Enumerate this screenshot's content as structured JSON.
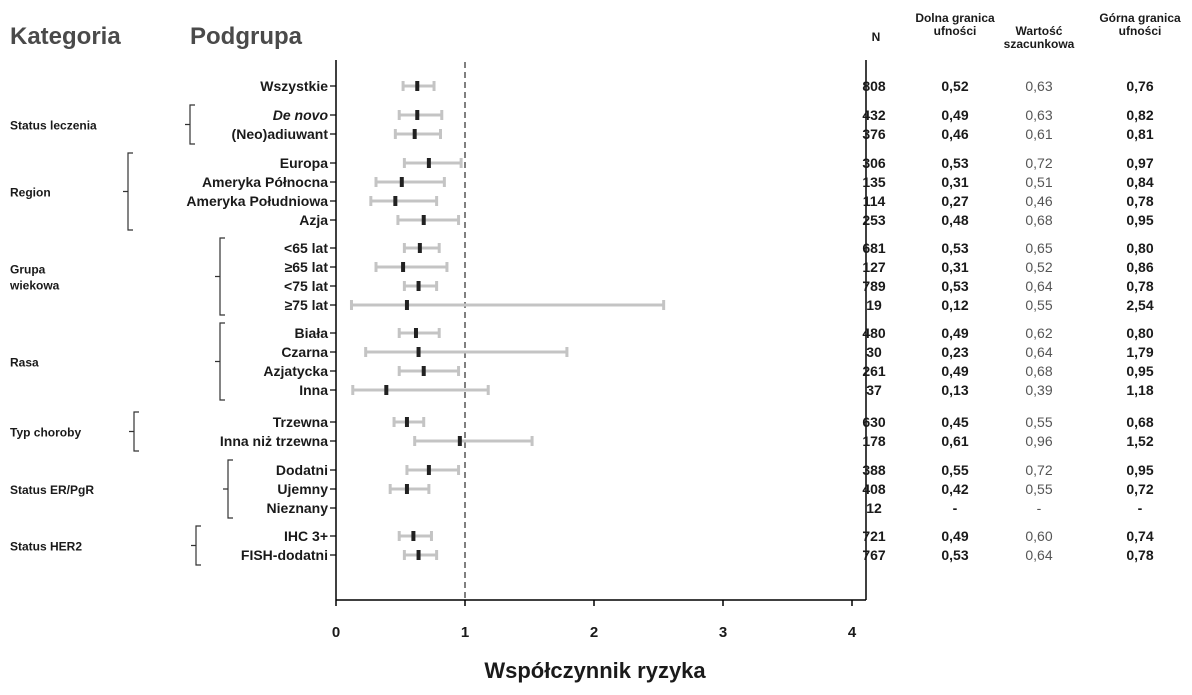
{
  "headers": {
    "kategoria": "Kategoria",
    "podgrupa": "Podgrupa",
    "n": "N",
    "lower_1": "Dolna granica",
    "lower_2": "ufności",
    "est_1": "Wartość",
    "est_2": "szacunkowa",
    "upper_1": "Górna granica",
    "upper_2": "ufności"
  },
  "chart_data": {
    "type": "forest",
    "xlabel": "Współczynnik ryzyka",
    "xlim": [
      0,
      4
    ],
    "xticks": [
      "0",
      "1",
      "2",
      "3",
      "4"
    ],
    "reference_line": 1,
    "categories": [
      {
        "label": [
          "Status leczenia"
        ],
        "rows": [
          1,
          2
        ]
      },
      {
        "label": [
          "Region"
        ],
        "rows": [
          3,
          4,
          5,
          6
        ]
      },
      {
        "label": [
          "Grupa",
          "wiekowa"
        ],
        "rows": [
          7,
          8,
          9,
          10
        ]
      },
      {
        "label": [
          "Rasa"
        ],
        "rows": [
          11,
          12,
          13,
          14
        ]
      },
      {
        "label": [
          "Typ choroby"
        ],
        "rows": [
          15,
          16
        ]
      },
      {
        "label": [
          "Status ER/PgR"
        ],
        "rows": [
          17,
          18,
          19
        ]
      },
      {
        "label": [
          "Status HER2"
        ],
        "rows": [
          20,
          21
        ]
      }
    ],
    "rows": [
      {
        "label": "Wszystkie",
        "italic": false,
        "n": "808",
        "lower": 0.52,
        "est": 0.63,
        "upper": 0.76,
        "lower_txt": "0,52",
        "est_txt": "0,63",
        "upper_txt": "0,76"
      },
      {
        "label": "De novo",
        "italic": true,
        "n": "432",
        "lower": 0.49,
        "est": 0.63,
        "upper": 0.82,
        "lower_txt": "0,49",
        "est_txt": "0,63",
        "upper_txt": "0,82"
      },
      {
        "label": "(Neo)adiuwant",
        "italic": false,
        "n": "376",
        "lower": 0.46,
        "est": 0.61,
        "upper": 0.81,
        "lower_txt": "0,46",
        "est_txt": "0,61",
        "upper_txt": "0,81"
      },
      {
        "label": "Europa",
        "italic": false,
        "n": "306",
        "lower": 0.53,
        "est": 0.72,
        "upper": 0.97,
        "lower_txt": "0,53",
        "est_txt": "0,72",
        "upper_txt": "0,97"
      },
      {
        "label": "Ameryka Północna",
        "italic": false,
        "n": "135",
        "lower": 0.31,
        "est": 0.51,
        "upper": 0.84,
        "lower_txt": "0,31",
        "est_txt": "0,51",
        "upper_txt": "0,84"
      },
      {
        "label": "Ameryka Południowa",
        "italic": false,
        "n": "114",
        "lower": 0.27,
        "est": 0.46,
        "upper": 0.78,
        "lower_txt": "0,27",
        "est_txt": "0,46",
        "upper_txt": "0,78"
      },
      {
        "label": "Azja",
        "italic": false,
        "n": "253",
        "lower": 0.48,
        "est": 0.68,
        "upper": 0.95,
        "lower_txt": "0,48",
        "est_txt": "0,68",
        "upper_txt": "0,95"
      },
      {
        "label": "<65  lat",
        "italic": false,
        "n": "681",
        "lower": 0.53,
        "est": 0.65,
        "upper": 0.8,
        "lower_txt": "0,53",
        "est_txt": "0,65",
        "upper_txt": "0,80"
      },
      {
        "label": "≥65  lat",
        "italic": false,
        "n": "127",
        "lower": 0.31,
        "est": 0.52,
        "upper": 0.86,
        "lower_txt": "0,31",
        "est_txt": "0,52",
        "upper_txt": "0,86"
      },
      {
        "label": "<75 lat",
        "italic": false,
        "n": "789",
        "lower": 0.53,
        "est": 0.64,
        "upper": 0.78,
        "lower_txt": "0,53",
        "est_txt": "0,64",
        "upper_txt": "0,78"
      },
      {
        "label": "≥75  lat",
        "italic": false,
        "n": "19",
        "lower": 0.12,
        "est": 0.55,
        "upper": 2.54,
        "lower_txt": "0,12",
        "est_txt": "0,55",
        "upper_txt": "2,54"
      },
      {
        "label": "Biała",
        "italic": false,
        "n": "480",
        "lower": 0.49,
        "est": 0.62,
        "upper": 0.8,
        "lower_txt": "0,49",
        "est_txt": "0,62",
        "upper_txt": "0,80"
      },
      {
        "label": "Czarna",
        "italic": false,
        "n": "30",
        "lower": 0.23,
        "est": 0.64,
        "upper": 1.79,
        "lower_txt": "0,23",
        "est_txt": "0,64",
        "upper_txt": "1,79"
      },
      {
        "label": "Azjatycka",
        "italic": false,
        "n": "261",
        "lower": 0.49,
        "est": 0.68,
        "upper": 0.95,
        "lower_txt": "0,49",
        "est_txt": "0,68",
        "upper_txt": "0,95"
      },
      {
        "label": "Inna",
        "italic": false,
        "n": "37",
        "lower": 0.13,
        "est": 0.39,
        "upper": 1.18,
        "lower_txt": "0,13",
        "est_txt": "0,39",
        "upper_txt": "1,18"
      },
      {
        "label": "Trzewna",
        "italic": false,
        "n": "630",
        "lower": 0.45,
        "est": 0.55,
        "upper": 0.68,
        "lower_txt": "0,45",
        "est_txt": "0,55",
        "upper_txt": "0,68"
      },
      {
        "label": "Inna niż trzewna",
        "italic": false,
        "n": "178",
        "lower": 0.61,
        "est": 0.96,
        "upper": 1.52,
        "lower_txt": "0,61",
        "est_txt": "0,96",
        "upper_txt": "1,52"
      },
      {
        "label": "Dodatni",
        "italic": false,
        "n": "388",
        "lower": 0.55,
        "est": 0.72,
        "upper": 0.95,
        "lower_txt": "0,55",
        "est_txt": "0,72",
        "upper_txt": "0,95"
      },
      {
        "label": "Ujemny",
        "italic": false,
        "n": "408",
        "lower": 0.42,
        "est": 0.55,
        "upper": 0.72,
        "lower_txt": "0,42",
        "est_txt": "0,55",
        "upper_txt": "0,72"
      },
      {
        "label": "Nieznany",
        "italic": false,
        "n": "12",
        "lower": null,
        "est": null,
        "upper": null,
        "lower_txt": "-",
        "est_txt": "-",
        "upper_txt": "-"
      },
      {
        "label": "IHC 3+",
        "italic": false,
        "n": "721",
        "lower": 0.49,
        "est": 0.6,
        "upper": 0.74,
        "lower_txt": "0,49",
        "est_txt": "0,60",
        "upper_txt": "0,74"
      },
      {
        "label": "FISH-dodatni",
        "italic": false,
        "n": "767",
        "lower": 0.53,
        "est": 0.64,
        "upper": 0.78,
        "lower_txt": "0,53",
        "est_txt": "0,64",
        "upper_txt": "0,78"
      }
    ]
  }
}
